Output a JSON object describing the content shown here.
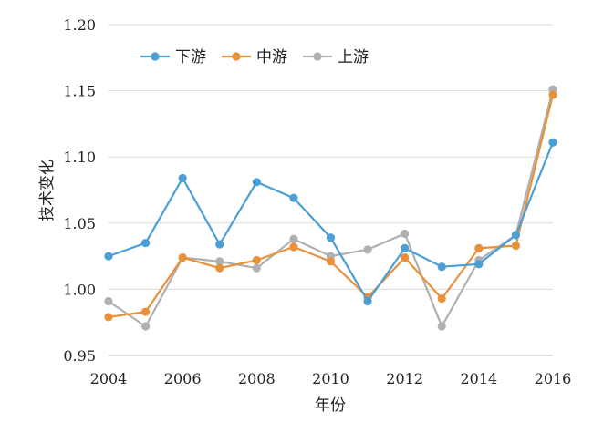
{
  "chart_data": {
    "type": "line",
    "title": "",
    "xlabel": "年份",
    "ylabel": "技术变化",
    "x": [
      2004,
      2005,
      2006,
      2007,
      2008,
      2009,
      2010,
      2011,
      2012,
      2013,
      2014,
      2015,
      2016
    ],
    "xticks": [
      "2004",
      "2006",
      "2008",
      "2010",
      "2012",
      "2014",
      "2016"
    ],
    "yticks": [
      "0.95",
      "1.00",
      "1.05",
      "1.10",
      "1.15",
      "1.20"
    ],
    "xlim": [
      2004,
      2016
    ],
    "ylim": [
      0.95,
      1.2
    ],
    "grid": "horizontal",
    "legend_position": "top-left",
    "series": [
      {
        "name": "下游",
        "color": "#4a9fd5",
        "values": [
          1.025,
          1.035,
          1.084,
          1.034,
          1.081,
          1.069,
          1.039,
          0.991,
          1.031,
          1.017,
          1.019,
          1.041,
          1.111
        ]
      },
      {
        "name": "中游",
        "color": "#e8913a",
        "values": [
          0.979,
          0.983,
          1.024,
          1.016,
          1.022,
          1.032,
          1.021,
          0.994,
          1.024,
          0.993,
          1.031,
          1.033,
          1.147
        ]
      },
      {
        "name": "上游",
        "color": "#b0b0b2",
        "values": [
          0.991,
          0.972,
          1.024,
          1.021,
          1.016,
          1.038,
          1.025,
          1.03,
          1.042,
          0.972,
          1.022,
          1.041,
          1.151
        ]
      }
    ]
  }
}
